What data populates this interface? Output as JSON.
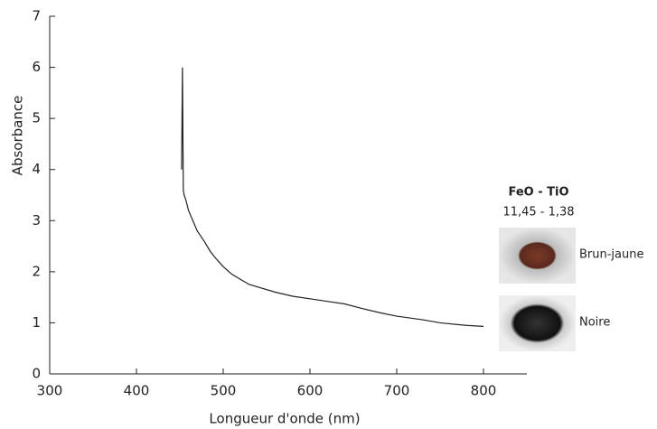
{
  "chart_data": {
    "type": "line",
    "x_label": "Longueur d'onde (nm)",
    "y_label": "Absorbance",
    "x": [
      452,
      453,
      454,
      455,
      457,
      460,
      465,
      470,
      478,
      485,
      492,
      500,
      510,
      520,
      530,
      540,
      560,
      580,
      600,
      620,
      640,
      660,
      680,
      700,
      730,
      750,
      780,
      800
    ],
    "values": [
      4.0,
      6.0,
      3.6,
      3.5,
      3.4,
      3.2,
      3.0,
      2.8,
      2.6,
      2.4,
      2.25,
      2.1,
      1.95,
      1.85,
      1.75,
      1.7,
      1.6,
      1.52,
      1.47,
      1.42,
      1.37,
      1.28,
      1.2,
      1.13,
      1.06,
      1.0,
      0.95,
      0.93
    ],
    "color": "#222222",
    "xlim": [
      300,
      850
    ],
    "xticks": [
      300,
      400,
      500,
      600,
      700,
      800
    ],
    "ylim": [
      0,
      7
    ],
    "yticks": [
      0,
      1,
      2,
      3,
      4,
      5,
      6,
      7
    ],
    "grid": false,
    "annotations": {
      "title": "FeO - TiO",
      "subtitle": "11,45 - 1,38",
      "samples": [
        "Brun-jaune",
        "Noire"
      ]
    }
  }
}
